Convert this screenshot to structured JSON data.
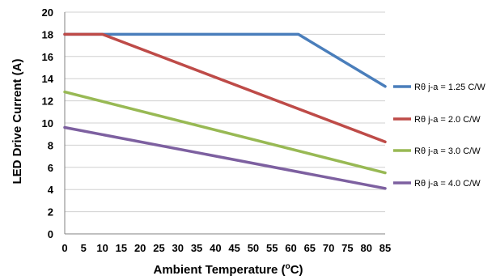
{
  "chart_data": {
    "type": "line",
    "xlabel": "Ambient Temperature  (",
    "xlabel_super": "o",
    "xlabel_tail": "C)",
    "ylabel": "LED Drive Current (A)",
    "xlim": [
      0,
      85
    ],
    "ylim": [
      0,
      20
    ],
    "x_ticks": [
      "0",
      "5",
      "10",
      "15",
      "20",
      "25",
      "30",
      "35",
      "40",
      "45",
      "50",
      "55",
      "60",
      "65",
      "70",
      "75",
      "80",
      "85"
    ],
    "y_ticks": [
      "0",
      "2",
      "4",
      "6",
      "8",
      "10",
      "12",
      "14",
      "16",
      "18",
      "20"
    ],
    "grid": {
      "horizontal": true,
      "vertical": false
    },
    "legend_position": "right",
    "series": [
      {
        "name": "Rθ j-a = 1.25 C/W",
        "color": "#4a7ebb",
        "points": [
          [
            0,
            18
          ],
          [
            62,
            18
          ],
          [
            85,
            13.3
          ]
        ]
      },
      {
        "name": "Rθ j-a = 2.0 C/W",
        "color": "#be4b48",
        "points": [
          [
            0,
            18
          ],
          [
            10,
            18
          ],
          [
            85,
            8.3
          ]
        ]
      },
      {
        "name": "Rθ j-a = 3.0 C/W",
        "color": "#98b954",
        "points": [
          [
            0,
            12.8
          ],
          [
            85,
            5.5
          ]
        ]
      },
      {
        "name": "Rθ j-a = 4.0 C/W",
        "color": "#7d60a0",
        "points": [
          [
            0,
            9.6
          ],
          [
            85,
            4.1
          ]
        ]
      }
    ]
  }
}
